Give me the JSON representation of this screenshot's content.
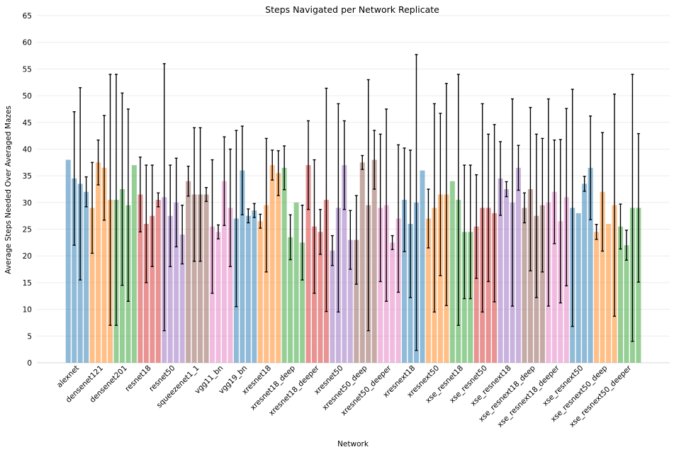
{
  "chart_data": {
    "type": "bar",
    "title": "Steps Navigated per Network Replicate",
    "xlabel": "Network",
    "ylabel": "Average Steps Needed Over Averaged Mazes",
    "ylim": [
      0,
      65
    ],
    "yticks": [
      0,
      5,
      10,
      15,
      20,
      25,
      30,
      35,
      40,
      45,
      50,
      55,
      60,
      65
    ],
    "grid": "horizontal",
    "colors": [
      "#1f77b4",
      "#ff7f0e",
      "#2ca02c",
      "#d62728",
      "#9467bd",
      "#8c564b",
      "#e377c2"
    ],
    "bar_alpha": 0.5,
    "groups": [
      {
        "name": "alexnet",
        "values": [
          38,
          34.5,
          33.5,
          32
        ],
        "errors": [
          0,
          12.5,
          18,
          2.8
        ]
      },
      {
        "name": "densenet121",
        "values": [
          29,
          37.5,
          36.5,
          30.5
        ],
        "errors": [
          8.5,
          4.2,
          9.8,
          23.5
        ]
      },
      {
        "name": "densenet201",
        "values": [
          30.5,
          32.5,
          29.5,
          37
        ],
        "errors": [
          23.5,
          18,
          18,
          0
        ]
      },
      {
        "name": "resnet18",
        "values": [
          31.5,
          26,
          27.5,
          30.5
        ],
        "errors": [
          7,
          11,
          9.5,
          1.3
        ]
      },
      {
        "name": "resnet50",
        "values": [
          31,
          27.5,
          30,
          24
        ],
        "errors": [
          25,
          9.5,
          8.3,
          5.5
        ]
      },
      {
        "name": "squeezenet1_1",
        "values": [
          34,
          31.5,
          31.5,
          31.5
        ],
        "errors": [
          2.8,
          12.5,
          12.5,
          1.3
        ]
      },
      {
        "name": "vgg11_bn",
        "values": [
          25.5,
          24.5,
          34,
          29
        ],
        "errors": [
          12.5,
          1.3,
          8.3,
          11
        ]
      },
      {
        "name": "vgg19_bn",
        "values": [
          27,
          36,
          27.5,
          28.5
        ],
        "errors": [
          16.5,
          8.3,
          1.3,
          1.3
        ]
      },
      {
        "name": "xresnet18",
        "values": [
          26.5,
          29.5,
          37,
          35.5
        ],
        "errors": [
          1.3,
          12.5,
          2.8,
          4.2
        ]
      },
      {
        "name": "xresnet18_deep",
        "values": [
          36.5,
          23.5,
          30,
          22.5
        ],
        "errors": [
          4.1,
          4.2,
          0,
          7
        ]
      },
      {
        "name": "xresnet18_deeper",
        "values": [
          37,
          25.5,
          24.5,
          30.5
        ],
        "errors": [
          8.3,
          12.5,
          4.2,
          20.9
        ]
      },
      {
        "name": "xresnet50",
        "values": [
          21,
          29,
          37,
          23
        ],
        "errors": [
          2.8,
          19.5,
          8.3,
          5.5
        ]
      },
      {
        "name": "xresnet50_deep",
        "values": [
          23,
          37.5,
          29.5,
          38
        ],
        "errors": [
          8.3,
          1.3,
          23.5,
          5.5
        ]
      },
      {
        "name": "xresnet50_deeper",
        "values": [
          29,
          29.5,
          22.5,
          27
        ],
        "errors": [
          13.8,
          18,
          1.3,
          13.8
        ]
      },
      {
        "name": "xresnext18",
        "values": [
          30.5,
          26,
          30,
          36
        ],
        "errors": [
          9.7,
          13.8,
          27.7,
          0
        ]
      },
      {
        "name": "xresnext50",
        "values": [
          27,
          29,
          31.5,
          31.5
        ],
        "errors": [
          5.5,
          19.5,
          15.2,
          20.8
        ]
      },
      {
        "name": "xse_resnet18",
        "values": [
          34,
          30.5,
          24.5,
          24.5
        ],
        "errors": [
          0,
          23.5,
          12.5,
          12.5
        ]
      },
      {
        "name": "xse_resnet50",
        "values": [
          25.5,
          29,
          29,
          28
        ],
        "errors": [
          9.7,
          19.5,
          13.8,
          16.6
        ]
      },
      {
        "name": "xse_resnext18",
        "values": [
          34.5,
          32.5,
          30,
          36.5
        ],
        "errors": [
          6.9,
          1.4,
          19.4,
          4.2
        ]
      },
      {
        "name": "xse_resnext18_deep",
        "values": [
          29,
          32.5,
          27.5,
          29.5
        ],
        "errors": [
          2.8,
          15.3,
          15.3,
          12.5
        ]
      },
      {
        "name": "xse_resnext18_deeper",
        "values": [
          30,
          32,
          26.5,
          31
        ],
        "errors": [
          19.4,
          9.7,
          15.3,
          16.6
        ]
      },
      {
        "name": "xse_resnext50",
        "values": [
          29,
          28,
          33.5,
          36.5
        ],
        "errors": [
          22.2,
          0,
          1.4,
          9.7
        ]
      },
      {
        "name": "xse_resnext50_deep",
        "values": [
          24.5,
          32,
          26,
          29.5
        ],
        "errors": [
          1.4,
          11.1,
          0,
          20.8
        ]
      },
      {
        "name": "xse_resnext50_deeper",
        "values": [
          25.5,
          22,
          29,
          29
        ],
        "errors": [
          4.2,
          2.8,
          25,
          13.9
        ]
      }
    ]
  }
}
